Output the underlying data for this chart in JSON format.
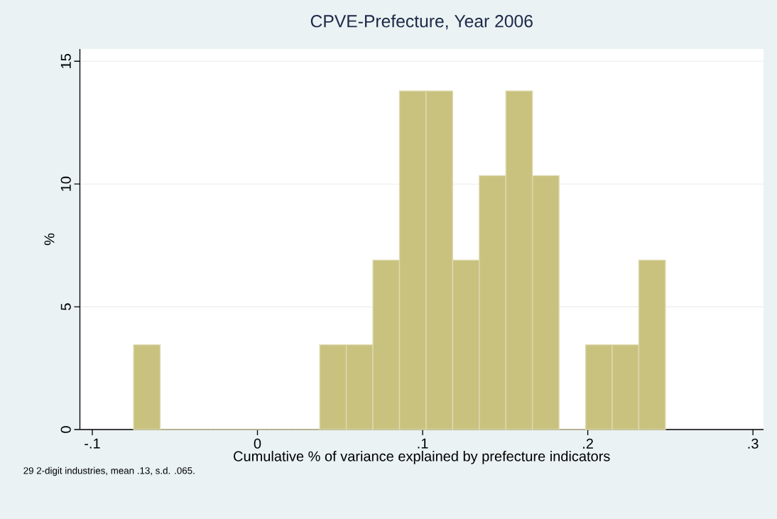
{
  "chart_data": {
    "type": "histogram",
    "title": "CPVE-Prefecture, Year 2006",
    "xlabel": "Cumulative % of variance explained by prefecture indicators",
    "ylabel": "%",
    "bins": [
      -0.075,
      -0.0589,
      -0.0428,
      -0.0267,
      -0.0106,
      0.0055,
      0.0216,
      0.0377,
      0.0538,
      0.0699,
      0.086,
      0.1021,
      0.1182,
      0.1343,
      0.1504,
      0.1665,
      0.1826,
      0.1987,
      0.2148,
      0.2309,
      0.247
    ],
    "values": [
      3.45,
      0,
      0,
      0,
      0,
      0,
      0,
      3.45,
      3.45,
      6.9,
      13.79,
      13.79,
      6.9,
      10.34,
      13.79,
      10.34,
      0,
      3.45,
      3.45,
      6.9
    ],
    "color": "#c9c27f",
    "xlim": [
      -0.1075,
      0.3064
    ],
    "ylim": [
      0,
      15.5
    ],
    "xticks": [
      {
        "value": -0.1,
        "label": "-.1"
      },
      0,
      {
        "value": 0.1,
        "label": ".1"
      },
      {
        "value": 0.2,
        "label": ".2"
      },
      {
        "value": 0.3,
        "label": ".3"
      }
    ],
    "yticks": [
      0,
      5,
      10,
      15
    ],
    "grid": "y",
    "annotations": [
      "29 2-digit industries, mean .13, s.d. .065."
    ]
  }
}
